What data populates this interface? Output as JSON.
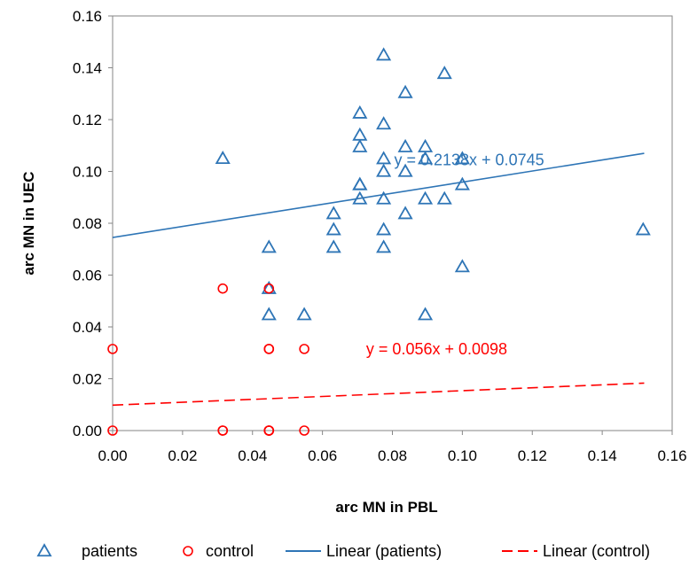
{
  "chart_data": {
    "type": "scatter",
    "title": "",
    "xlabel": "arc MN in PBL",
    "ylabel": "arc MN in UEC",
    "xlim": [
      0,
      0.16
    ],
    "ylim": [
      0,
      0.16
    ],
    "x_ticks": [
      "0.00",
      "0.02",
      "0.04",
      "0.06",
      "0.08",
      "0.10",
      "0.12",
      "0.14",
      "0.16"
    ],
    "y_ticks": [
      "0.00",
      "0.02",
      "0.04",
      "0.06",
      "0.08",
      "0.10",
      "0.12",
      "0.14",
      "0.16"
    ],
    "grid": false,
    "legend_position": "bottom",
    "series": [
      {
        "name": "patients",
        "marker": "triangle",
        "color": "#2e75b6",
        "points": [
          [
            0.0315,
            0.105
          ],
          [
            0.0447,
            0.0707
          ],
          [
            0.0447,
            0.0548
          ],
          [
            0.0447,
            0.0447
          ],
          [
            0.0548,
            0.0447
          ],
          [
            0.0632,
            0.0837
          ],
          [
            0.0632,
            0.0775
          ],
          [
            0.0632,
            0.0707
          ],
          [
            0.0707,
            0.1225
          ],
          [
            0.0707,
            0.114
          ],
          [
            0.0707,
            0.1095
          ],
          [
            0.0707,
            0.0949
          ],
          [
            0.0707,
            0.0949
          ],
          [
            0.0707,
            0.0894
          ],
          [
            0.0775,
            0.1449
          ],
          [
            0.0775,
            0.1183
          ],
          [
            0.0775,
            0.1049
          ],
          [
            0.0775,
            0.1
          ],
          [
            0.0775,
            0.0894
          ],
          [
            0.0775,
            0.0775
          ],
          [
            0.0775,
            0.0707
          ],
          [
            0.0837,
            0.1304
          ],
          [
            0.0837,
            0.1095
          ],
          [
            0.0837,
            0.1
          ],
          [
            0.0837,
            0.0837
          ],
          [
            0.0894,
            0.1095
          ],
          [
            0.0894,
            0.1049
          ],
          [
            0.0894,
            0.0894
          ],
          [
            0.0894,
            0.0447
          ],
          [
            0.0949,
            0.1378
          ],
          [
            0.0949,
            0.0894
          ],
          [
            0.1,
            0.1049
          ],
          [
            0.1,
            0.0949
          ],
          [
            0.1,
            0.0632
          ],
          [
            0.1517,
            0.0775
          ]
        ]
      },
      {
        "name": "control",
        "marker": "circle",
        "color": "#ff0000",
        "points": [
          [
            0.0,
            0.0315
          ],
          [
            0.0,
            0.0
          ],
          [
            0.0315,
            0.0548
          ],
          [
            0.0315,
            0.0
          ],
          [
            0.0315,
            0.0
          ],
          [
            0.0447,
            0.0548
          ],
          [
            0.0447,
            0.0315
          ],
          [
            0.0447,
            0.0315
          ],
          [
            0.0447,
            0.0
          ],
          [
            0.0447,
            0.0
          ],
          [
            0.0447,
            0.0
          ],
          [
            0.0548,
            0.0315
          ],
          [
            0.0548,
            0.0
          ]
        ]
      }
    ],
    "trendlines": [
      {
        "name": "Linear (patients)",
        "color": "#2e75b6",
        "dashed": false,
        "slope": 0.2138,
        "intercept": 0.0745,
        "x_range": [
          0,
          0.152
        ],
        "equation": "y = 0.2138x + 0.0745"
      },
      {
        "name": "Linear (control)",
        "color": "#ff0000",
        "dashed": true,
        "slope": 0.056,
        "intercept": 0.0098,
        "x_range": [
          0,
          0.152
        ],
        "equation": "y = 0.056x + 0.0098"
      }
    ]
  }
}
